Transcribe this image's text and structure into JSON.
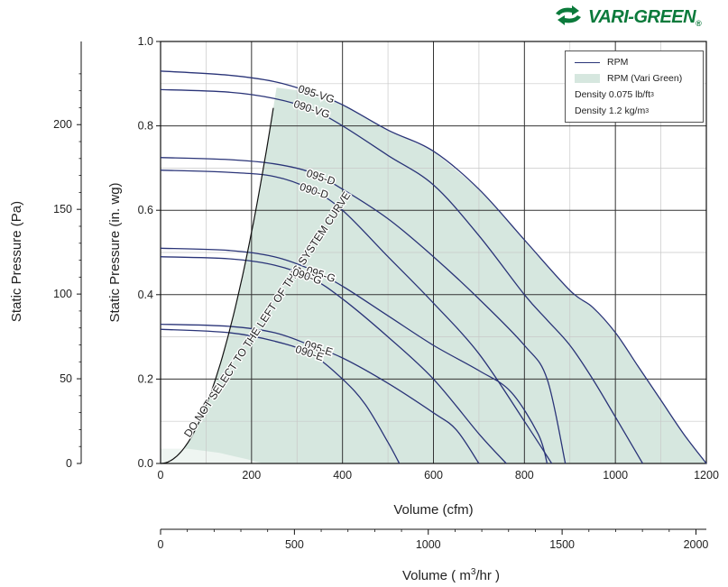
{
  "brand": {
    "name": "VARI-GREEN",
    "registered": "®",
    "color": "#0b7a3b"
  },
  "legend": {
    "line_label": "RPM",
    "area_label": "RPM (Vari Green)",
    "density_imperial_prefix": "Density 0.075 lb/ft",
    "density_imperial_exp": "3",
    "density_metric_prefix": "Density  1.2 kg/m",
    "density_metric_exp": "3"
  },
  "colors": {
    "curve": "#2a3478",
    "area_fill": "#d6e7df",
    "grid_major": "#333333",
    "grid_minor": "#c8c8c8"
  },
  "chart_data": {
    "type": "line",
    "xlabel": "Volume (cfm)",
    "ylabel": "Static Pressure (in. wg)",
    "xlim": [
      0,
      1200
    ],
    "ylim": [
      0,
      1.0
    ],
    "x_ticks": [
      0,
      200,
      400,
      600,
      800,
      1000,
      1200
    ],
    "y_ticks": [
      0.0,
      0.2,
      0.4,
      0.6,
      0.8,
      1.0
    ],
    "y_tick_labels": [
      "0.0",
      "0.2",
      "0.4",
      "0.6",
      "0.8",
      "1.0"
    ],
    "secondary_x": {
      "label_prefix": "Volume  ( m",
      "label_exp": "3",
      "label_suffix": "/hr )",
      "ticks": [
        0,
        500,
        1000,
        1500,
        2000
      ],
      "max": 2038.8
    },
    "secondary_y": {
      "label": "Static Pressure (Pa)",
      "ticks": [
        0,
        50,
        100,
        150,
        200
      ]
    },
    "system_curve": {
      "label": "DO NOT SELECT TO THE LEFT OF THIS SYSTEM CURVE",
      "k": 1.37e-05,
      "x_max": 250
    },
    "vari_green_region": {
      "upper": [
        [
          0,
          0.93
        ],
        [
          150,
          0.92
        ],
        [
          250,
          0.905
        ],
        [
          330,
          0.88
        ],
        [
          400,
          0.85
        ],
        [
          500,
          0.79
        ],
        [
          600,
          0.74
        ],
        [
          700,
          0.65
        ],
        [
          800,
          0.53
        ],
        [
          900,
          0.41
        ],
        [
          950,
          0.37
        ],
        [
          1000,
          0.31
        ],
        [
          1050,
          0.23
        ],
        [
          1100,
          0.15
        ],
        [
          1150,
          0.07
        ],
        [
          1200,
          0.0
        ]
      ],
      "low_speed": [
        [
          0,
          0.035
        ],
        [
          60,
          0.035
        ],
        [
          130,
          0.025
        ],
        [
          190,
          0.01
        ],
        [
          225,
          0.0
        ]
      ]
    },
    "series": [
      {
        "name": "095-VG",
        "points": [
          [
            0,
            0.93
          ],
          [
            150,
            0.92
          ],
          [
            250,
            0.905
          ],
          [
            330,
            0.88
          ],
          [
            400,
            0.85
          ],
          [
            500,
            0.79
          ],
          [
            600,
            0.74
          ],
          [
            700,
            0.65
          ],
          [
            800,
            0.53
          ],
          [
            900,
            0.41
          ],
          [
            950,
            0.37
          ],
          [
            1000,
            0.31
          ],
          [
            1050,
            0.23
          ],
          [
            1100,
            0.15
          ],
          [
            1150,
            0.07
          ],
          [
            1200,
            0.0
          ]
        ]
      },
      {
        "name": "090-VG",
        "points": [
          [
            0,
            0.886
          ],
          [
            150,
            0.88
          ],
          [
            250,
            0.865
          ],
          [
            330,
            0.84
          ],
          [
            400,
            0.8
          ],
          [
            500,
            0.73
          ],
          [
            600,
            0.66
          ],
          [
            700,
            0.54
          ],
          [
            800,
            0.4
          ],
          [
            850,
            0.34
          ],
          [
            900,
            0.28
          ],
          [
            950,
            0.2
          ],
          [
            1000,
            0.11
          ],
          [
            1060,
            0.0
          ]
        ]
      },
      {
        "name": "095-D",
        "points": [
          [
            0,
            0.725
          ],
          [
            150,
            0.72
          ],
          [
            250,
            0.71
          ],
          [
            330,
            0.69
          ],
          [
            400,
            0.65
          ],
          [
            500,
            0.58
          ],
          [
            600,
            0.49
          ],
          [
            700,
            0.39
          ],
          [
            800,
            0.28
          ],
          [
            850,
            0.2
          ],
          [
            890,
            0.0
          ]
        ]
      },
      {
        "name": "090-D",
        "points": [
          [
            0,
            0.695
          ],
          [
            150,
            0.69
          ],
          [
            250,
            0.68
          ],
          [
            330,
            0.65
          ],
          [
            400,
            0.6
          ],
          [
            500,
            0.49
          ],
          [
            600,
            0.38
          ],
          [
            700,
            0.26
          ],
          [
            800,
            0.1
          ],
          [
            860,
            0.0
          ]
        ]
      },
      {
        "name": "095-G",
        "points": [
          [
            0,
            0.51
          ],
          [
            150,
            0.505
          ],
          [
            250,
            0.49
          ],
          [
            330,
            0.46
          ],
          [
            400,
            0.42
          ],
          [
            500,
            0.35
          ],
          [
            600,
            0.28
          ],
          [
            700,
            0.22
          ],
          [
            770,
            0.17
          ],
          [
            830,
            0.07
          ],
          [
            850,
            0.0
          ]
        ]
      },
      {
        "name": "090-G",
        "points": [
          [
            0,
            0.49
          ],
          [
            150,
            0.485
          ],
          [
            250,
            0.47
          ],
          [
            330,
            0.44
          ],
          [
            400,
            0.39
          ],
          [
            500,
            0.3
          ],
          [
            600,
            0.2
          ],
          [
            700,
            0.07
          ],
          [
            760,
            0.0
          ]
        ]
      },
      {
        "name": "095-E",
        "points": [
          [
            0,
            0.33
          ],
          [
            150,
            0.325
          ],
          [
            250,
            0.31
          ],
          [
            330,
            0.28
          ],
          [
            400,
            0.25
          ],
          [
            500,
            0.19
          ],
          [
            600,
            0.12
          ],
          [
            650,
            0.08
          ],
          [
            700,
            0.0
          ]
        ]
      },
      {
        "name": "090-E",
        "points": [
          [
            0,
            0.318
          ],
          [
            150,
            0.31
          ],
          [
            250,
            0.29
          ],
          [
            330,
            0.26
          ],
          [
            400,
            0.2
          ],
          [
            450,
            0.14
          ],
          [
            500,
            0.05
          ],
          [
            525,
            0.0
          ]
        ]
      }
    ]
  }
}
